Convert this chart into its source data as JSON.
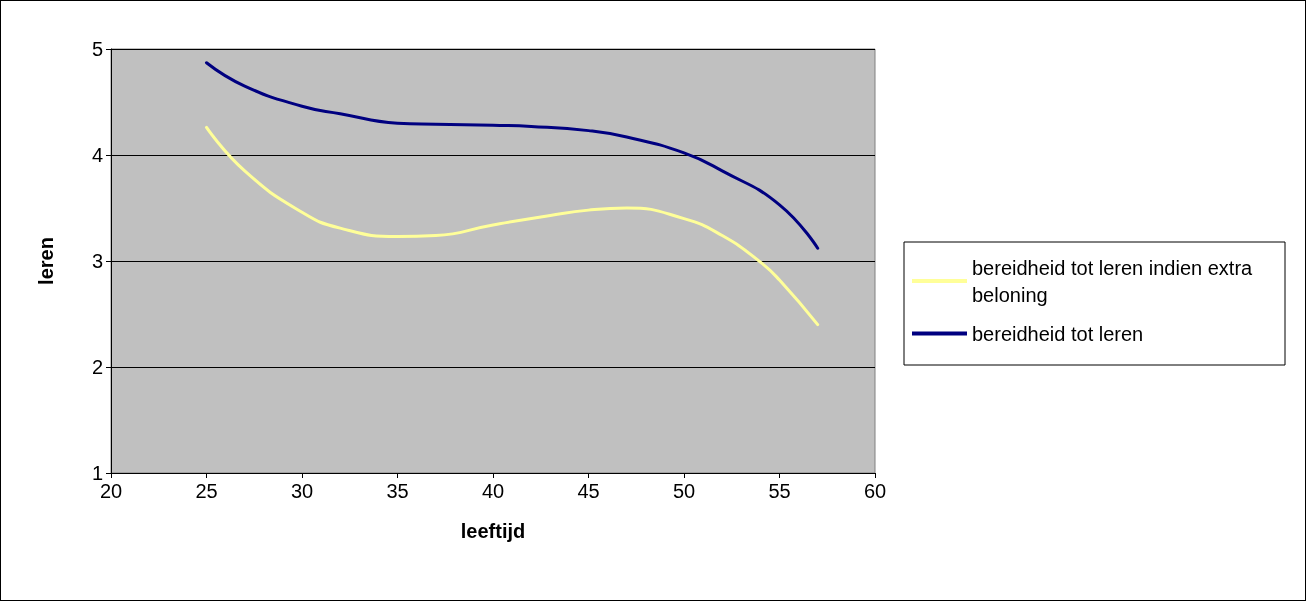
{
  "chart_data": {
    "type": "line",
    "xlabel": "leeftijd",
    "ylabel": "leren",
    "xlim": [
      20,
      60
    ],
    "xticks": [
      20,
      25,
      30,
      35,
      40,
      45,
      50,
      55,
      60
    ],
    "ylim": [
      1,
      5
    ],
    "yticks": [
      1,
      2,
      3,
      4,
      5
    ],
    "grid": "y",
    "legend": "right",
    "marker": "none",
    "line_style": "solid",
    "series": [
      {
        "name": "bereidheid tot leren indien extra beloning",
        "color": "#ffff99",
        "x": [
          25,
          27,
          30,
          32,
          35,
          37,
          40,
          43,
          45,
          47,
          50,
          52,
          54,
          55,
          57
        ],
        "values": [
          4.26,
          3.85,
          3.46,
          3.31,
          3.23,
          3.24,
          3.34,
          3.43,
          3.48,
          3.5,
          3.4,
          3.24,
          2.99,
          2.82,
          2.4
        ]
      },
      {
        "name": "bereidheid tot leren",
        "color": "#000080",
        "x": [
          25,
          27,
          30,
          32,
          35,
          37,
          40,
          42,
          45,
          47,
          50,
          52,
          55,
          57
        ],
        "values": [
          4.87,
          4.65,
          4.46,
          4.39,
          4.3,
          4.29,
          4.28,
          4.27,
          4.23,
          4.17,
          4.02,
          3.85,
          3.53,
          3.12
        ]
      }
    ]
  }
}
